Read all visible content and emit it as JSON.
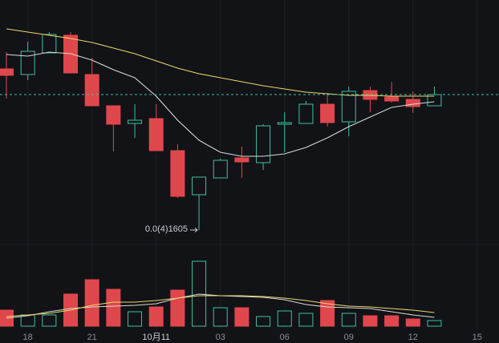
{
  "chart_data": {
    "type": "candlestick",
    "xlim": [
      -0.3,
      23.02
    ],
    "xticks": [
      {
        "value": 1,
        "label": "18"
      },
      {
        "value": 4,
        "label": "21"
      },
      {
        "value": 7,
        "label": "10月11"
      },
      {
        "value": 10,
        "label": "03"
      },
      {
        "value": 13,
        "label": "06"
      },
      {
        "value": 16,
        "label": "09"
      },
      {
        "value": 19,
        "label": "12"
      },
      {
        "value": 22,
        "label": "15"
      }
    ],
    "ylim": [
      0,
      300
    ],
    "up_color": "#3fbf9f",
    "down_color": "#e0474c",
    "open": [
      214,
      207,
      234,
      256,
      207,
      168,
      146,
      152,
      112,
      57,
      78,
      103,
      97,
      145,
      146,
      170,
      148,
      187,
      179,
      176,
      168
    ],
    "high": [
      235,
      248,
      260,
      260,
      228,
      168,
      170,
      170,
      120,
      79,
      102,
      117,
      145,
      160,
      174,
      184,
      192,
      192,
      198,
      186,
      192
    ],
    "low": [
      177,
      200,
      234,
      209,
      168,
      111,
      128,
      112,
      53,
      13,
      78,
      78,
      88,
      110,
      146,
      142,
      130,
      160,
      172,
      159,
      168
    ],
    "close": [
      206,
      236,
      257,
      209,
      168,
      145,
      150,
      112,
      55,
      79,
      100,
      98,
      143,
      147,
      170,
      147,
      186,
      176,
      174,
      167,
      182
    ],
    "ma": [
      {
        "color": "#d8d8d8",
        "values": [
          232,
          230,
          235,
          233,
          225,
          213,
          203,
          180,
          150,
          125,
          110,
          105,
          105,
          108,
          116,
          128,
          142,
          154,
          166,
          170,
          173
        ]
      },
      {
        "color": "#e8d66a",
        "values": [
          264,
          260,
          256,
          252,
          247,
          240,
          233,
          224,
          215,
          208,
          203,
          198,
          193,
          189,
          185,
          183,
          181,
          181,
          180,
          180,
          180
        ]
      }
    ],
    "annotation": "0.0(4)1605",
    "volume": {
      "ylim": [
        0,
        100
      ],
      "values": [
        20,
        14,
        14,
        40,
        58,
        46,
        18,
        24,
        45,
        81,
        23,
        23,
        12,
        19,
        16,
        32,
        16,
        13,
        13,
        9,
        7
      ],
      "ma": [
        {
          "color": "#d8d8d8",
          "values": [
            10,
            13,
            18,
            22,
            24,
            25,
            26,
            28,
            35,
            40,
            38,
            37,
            36,
            33,
            27,
            24,
            23,
            22,
            18,
            14,
            11
          ]
        },
        {
          "color": "#e8d66a",
          "values": [
            12,
            14,
            16,
            20,
            26,
            30,
            30,
            32,
            35,
            38,
            38,
            38,
            37,
            35,
            32,
            28,
            25,
            24,
            22,
            20,
            17
          ]
        }
      ]
    }
  }
}
